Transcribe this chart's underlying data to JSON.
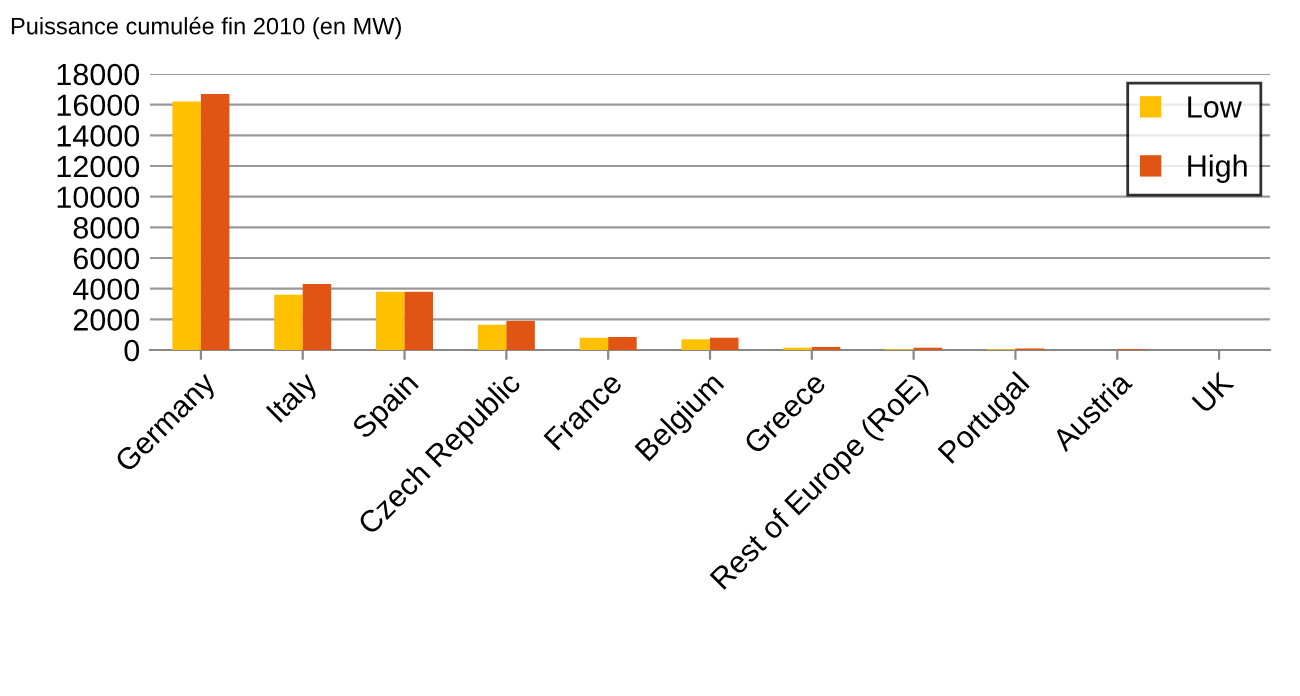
{
  "chart_data": {
    "type": "bar",
    "title": "Puissance cumulée fin 2010 (en MW)",
    "categories": [
      "Germany",
      "Italy",
      "Spain",
      "Czech Republic",
      "France",
      "Belgium",
      "Greece",
      "Rest of Europe (RoE)",
      "Portugal",
      "Austria",
      "UK"
    ],
    "series": [
      {
        "name": "Low",
        "color": "#ffc000",
        "values": [
          16200,
          3600,
          3800,
          1650,
          800,
          700,
          150,
          50,
          50,
          null,
          null
        ]
      },
      {
        "name": "High",
        "color": "#e05514",
        "values": [
          16700,
          4300,
          3800,
          1900,
          850,
          800,
          200,
          150,
          100,
          60,
          null
        ]
      }
    ],
    "ylim": [
      0,
      18000
    ],
    "yticks": [
      0,
      2000,
      4000,
      6000,
      8000,
      10000,
      12000,
      14000,
      16000,
      18000
    ],
    "grid": "y",
    "legend": "top right"
  }
}
